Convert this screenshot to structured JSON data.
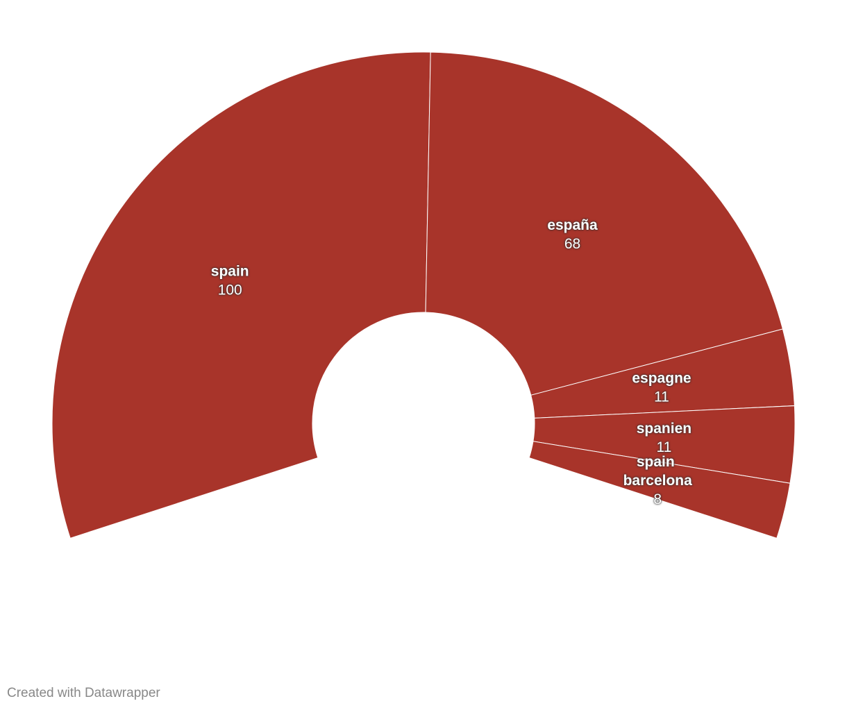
{
  "chart_data": {
    "type": "pie",
    "categories": [
      "spain",
      "españa",
      "espagne",
      "spanien",
      "spain barcelona"
    ],
    "values": [
      100,
      68,
      11,
      11,
      8
    ],
    "color": "#a8342a",
    "credit": "Created with Datawrapper"
  }
}
